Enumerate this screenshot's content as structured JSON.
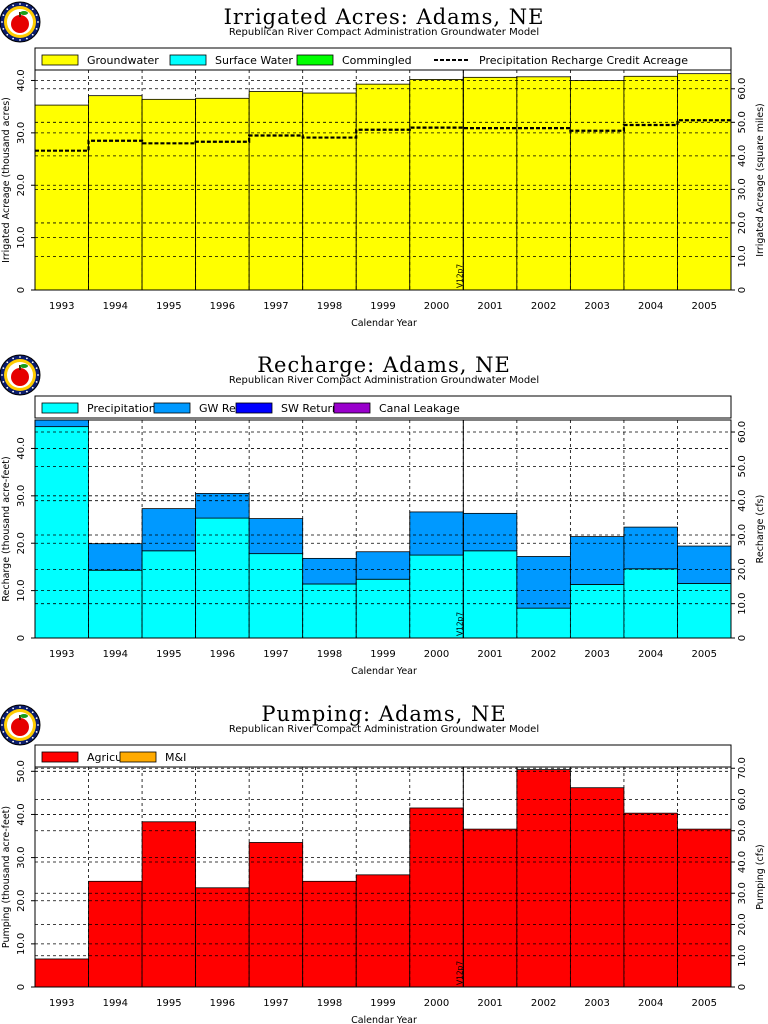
{
  "colors": {
    "groundwater": "#ffff00",
    "surface_water": "#00ffff",
    "commingled": "#00ff00",
    "precipitation": "#00ffff",
    "gw_returns": "#0099ff",
    "sw_returns": "#0000ff",
    "canal_leakage": "#9900cc",
    "agricultural": "#ff0000",
    "mi": "#ffaa00"
  },
  "chart_data": [
    {
      "type": "area",
      "title": "Irrigated Acres: Adams, NE",
      "subtitle": "Republican River Compact Administration Groundwater Model",
      "xlabel": "Calendar Year",
      "ylabel": "Irrigated Acreage (thousand acres)",
      "ylabel_right": "Irrigated Acreage (square miles)",
      "categories": [
        "1993",
        "1994",
        "1995",
        "1996",
        "1997",
        "1998",
        "1999",
        "2000",
        "2001",
        "2002",
        "2003",
        "2004",
        "2005"
      ],
      "ylim": [
        0,
        42
      ],
      "yticks": [
        "0",
        "10.0",
        "20.0",
        "30.0",
        "40.0"
      ],
      "ylim_right": [
        0,
        65.6
      ],
      "yticks_right": [
        "0",
        "10.0",
        "20.0",
        "30.0",
        "40.0",
        "50.0",
        "60.0"
      ],
      "marker_label": "V12p7",
      "series": [
        {
          "name": "Groundwater",
          "color_key": "groundwater",
          "values": [
            35.3,
            37.1,
            36.4,
            36.6,
            37.9,
            37.6,
            39.3,
            40.2,
            40.6,
            40.7,
            40.0,
            40.8,
            41.3
          ]
        },
        {
          "name": "Surface Water",
          "color_key": "surface_water",
          "values": [
            0,
            0,
            0,
            0,
            0,
            0,
            0,
            0,
            0,
            0,
            0,
            0,
            0
          ]
        },
        {
          "name": "Commingled",
          "color_key": "commingled",
          "values": [
            0,
            0,
            0,
            0,
            0,
            0,
            0,
            0,
            0,
            0,
            0,
            0,
            0
          ]
        },
        {
          "name": "Precipitation Recharge Credit Acreage",
          "line": true,
          "values": [
            26.6,
            28.5,
            28.0,
            28.3,
            29.5,
            29.1,
            30.6,
            31.0,
            30.9,
            30.9,
            30.4,
            31.5,
            32.4
          ]
        }
      ]
    },
    {
      "type": "area",
      "title": "Recharge: Adams, NE",
      "subtitle": "Republican River Compact Administration Groundwater Model",
      "xlabel": "Calendar Year",
      "ylabel": "Recharge (thousand acre-feet)",
      "ylabel_right": "Recharge (cfs)",
      "categories": [
        "1993",
        "1994",
        "1995",
        "1996",
        "1997",
        "1998",
        "1999",
        "2000",
        "2001",
        "2002",
        "2003",
        "2004",
        "2005"
      ],
      "ylim": [
        0,
        46
      ],
      "yticks": [
        "0",
        "10.0",
        "20.0",
        "30.0",
        "40.0"
      ],
      "ylim_right": [
        0,
        63.5
      ],
      "yticks_right": [
        "0",
        "10.0",
        "20.0",
        "30.0",
        "40.0",
        "50.0",
        "60.0"
      ],
      "marker_label": "V12p7",
      "series": [
        {
          "name": "Precipitation",
          "color_key": "precipitation",
          "values": [
            44.6,
            14.3,
            18.4,
            25.3,
            17.8,
            11.4,
            12.4,
            17.5,
            18.4,
            6.3,
            11.3,
            14.6,
            11.5
          ]
        },
        {
          "name": "GW Returns",
          "color_key": "gw_returns",
          "values": [
            1.4,
            5.6,
            8.9,
            5.2,
            7.4,
            5.4,
            5.8,
            9.1,
            7.9,
            10.9,
            10.1,
            8.8,
            7.9
          ]
        },
        {
          "name": "SW Returns",
          "color_key": "sw_returns",
          "values": [
            0,
            0,
            0,
            0,
            0,
            0,
            0,
            0,
            0,
            0,
            0,
            0,
            0
          ]
        },
        {
          "name": "Canal Leakage",
          "color_key": "canal_leakage",
          "values": [
            0,
            0,
            0,
            0,
            0,
            0,
            0,
            0,
            0,
            0,
            0,
            0,
            0
          ]
        }
      ]
    },
    {
      "type": "area",
      "title": "Pumping: Adams, NE",
      "subtitle": "Republican River Compact Administration Groundwater Model",
      "xlabel": "Calendar Year",
      "ylabel": "Pumping (thousand acre-feet)",
      "ylabel_right": "Pumping (cfs)",
      "categories": [
        "1993",
        "1994",
        "1995",
        "1996",
        "1997",
        "1998",
        "1999",
        "2000",
        "2001",
        "2002",
        "2003",
        "2004",
        "2005"
      ],
      "ylim": [
        0,
        51
      ],
      "yticks": [
        "0",
        "10.0",
        "20.0",
        "30.0",
        "40.0",
        "50.0"
      ],
      "ylim_right": [
        0,
        70.4
      ],
      "yticks_right": [
        "0",
        "10.0",
        "20.0",
        "30.0",
        "40.0",
        "50.0",
        "60.0",
        "70.0"
      ],
      "marker_label": "V12p7",
      "series": [
        {
          "name": "Agricultural",
          "color_key": "agricultural",
          "values": [
            6.5,
            24.5,
            38.3,
            23.0,
            33.5,
            24.5,
            26.0,
            41.5,
            36.6,
            50.4,
            46.2,
            40.3,
            36.6
          ]
        },
        {
          "name": "M&I",
          "color_key": "mi",
          "values": [
            0,
            0,
            0,
            0,
            0,
            0,
            0,
            0,
            0,
            0,
            0,
            0,
            0
          ]
        }
      ]
    }
  ]
}
